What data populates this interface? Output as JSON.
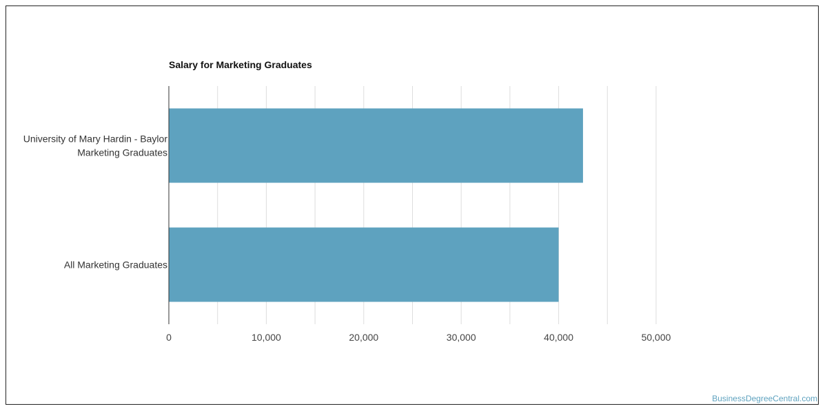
{
  "chart_data": {
    "type": "bar",
    "orientation": "horizontal",
    "title": "Salary for Marketing Graduates",
    "categories": [
      [
        "University of Mary Hardin - Baylor",
        "Marketing Graduates"
      ],
      [
        "All Marketing Graduates"
      ]
    ],
    "values": [
      42500,
      40000
    ],
    "xlim": [
      0,
      50000
    ],
    "xticks": [
      0,
      10000,
      20000,
      30000,
      40000,
      50000
    ],
    "xtick_labels": [
      "0",
      "10,000",
      "20,000",
      "30,000",
      "40,000",
      "50,000"
    ],
    "xlabel": "",
    "ylabel": "",
    "grid": true,
    "legend": "none",
    "bar_color": "#5ea2bf"
  },
  "watermark": "BusinessDegreeCentral.com"
}
